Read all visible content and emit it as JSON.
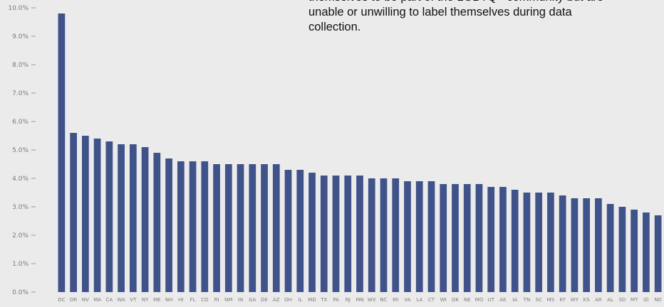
{
  "chart_data": {
    "type": "bar",
    "categories": [
      "DC",
      "OR",
      "NV",
      "MA",
      "CA",
      "WA",
      "VT",
      "NY",
      "ME",
      "NH",
      "HI",
      "FL",
      "CO",
      "RI",
      "NM",
      "IN",
      "GA",
      "DE",
      "AZ",
      "OH",
      "IL",
      "MD",
      "TX",
      "PA",
      "NJ",
      "MN",
      "WV",
      "NC",
      "MI",
      "VA",
      "LA",
      "CT",
      "WI",
      "OK",
      "NE",
      "MO",
      "UT",
      "AK",
      "IA",
      "TN",
      "SC",
      "MS",
      "KY",
      "WY",
      "KS",
      "AR",
      "AL",
      "SD",
      "MT",
      "ID",
      "ND"
    ],
    "values": [
      9.8,
      5.6,
      5.5,
      5.4,
      5.3,
      5.2,
      5.2,
      5.1,
      4.9,
      4.7,
      4.6,
      4.6,
      4.6,
      4.5,
      4.5,
      4.5,
      4.5,
      4.5,
      4.5,
      4.3,
      4.3,
      4.2,
      4.1,
      4.1,
      4.1,
      4.1,
      4.0,
      4.0,
      4.0,
      3.9,
      3.9,
      3.9,
      3.8,
      3.8,
      3.8,
      3.8,
      3.7,
      3.7,
      3.6,
      3.5,
      3.5,
      3.5,
      3.4,
      3.3,
      3.3,
      3.3,
      3.1,
      3.0,
      2.9,
      2.8,
      2.7
    ],
    "ylim": [
      0,
      10
    ],
    "yticks": [
      "0.0%",
      "1.0%",
      "2.0%",
      "3.0%",
      "4.0%",
      "5.0%",
      "6.0%",
      "7.0%",
      "8.0%",
      "9.0%",
      "10.0%"
    ],
    "title": "",
    "xlabel": "",
    "ylabel": "",
    "grid": false,
    "colors": {
      "bar": "#3f5289",
      "background": "#ebebeb",
      "axis_text": "#7a7a7a"
    },
    "annotation": "themselves to be part of the LGBTQ+ community but are\nunable or unwilling to label themselves during data\ncollection."
  }
}
